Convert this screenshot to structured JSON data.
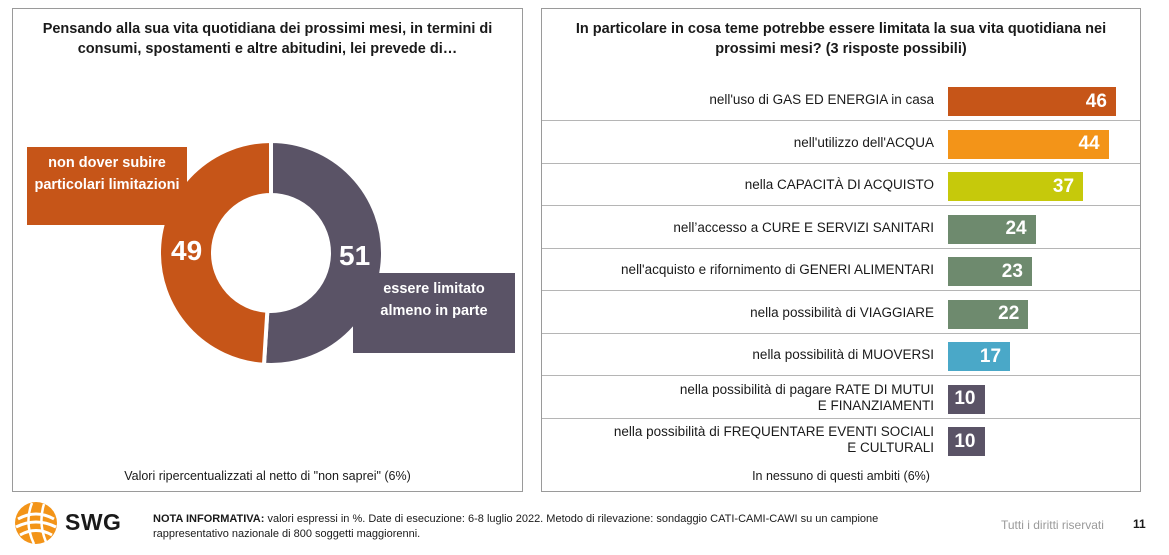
{
  "left_panel": {
    "title": "Pensando alla sua vita quotidiana dei prossimi mesi, in termini di consumi, spostamenti e altre abitudini, lei prevede di…",
    "note": "Valori ripercentualizzati al netto di \"non saprei\" (6%)",
    "callout_no_limit": "non dover subire particolari limitazioni",
    "callout_limited": "essere limitato almeno in parte"
  },
  "right_panel": {
    "title": "In particolare in cosa teme potrebbe essere limitata la sua vita quotidiana nei prossimi mesi? (3 risposte possibili)",
    "note": "In nessuno di questi ambiti (6%)"
  },
  "chart_data": [
    {
      "type": "pie",
      "variant": "donut",
      "labels": [
        "essere limitato almeno in parte",
        "non dover subire particolari limitazioni"
      ],
      "values": [
        51,
        49
      ],
      "colors": [
        "#5a5366",
        "#c65518"
      ]
    },
    {
      "type": "bar",
      "orientation": "horizontal",
      "categories": [
        "nell'uso di GAS ED ENERGIA in casa",
        "nell'utilizzo dell'ACQUA",
        "nella CAPACITÀ DI ACQUISTO",
        "nell’accesso a CURE E SERVIZI SANITARI",
        "nell'acquisto e rifornimento di GENERI ALIMENTARI",
        "nella possibilità di VIAGGIARE",
        "nella possibilità di MUOVERSI",
        "nella possibilità di pagare RATE DI MUTUI E FINANZIAMENTI",
        "nella possibilità di FREQUENTARE EVENTI SOCIALI E CULTURALI"
      ],
      "category_lines": [
        [
          "nell'uso di GAS ED ENERGIA in casa"
        ],
        [
          "nell'utilizzo dell'ACQUA"
        ],
        [
          "nella CAPACITÀ DI ACQUISTO"
        ],
        [
          "nell’accesso a CURE E SERVIZI SANITARI"
        ],
        [
          "nell'acquisto e rifornimento di GENERI ALIMENTARI"
        ],
        [
          "nella possibilità di VIAGGIARE"
        ],
        [
          "nella possibilità di MUOVERSI"
        ],
        [
          "nella possibilità di pagare RATE DI MUTUI",
          "E FINANZIAMENTI"
        ],
        [
          "nella possibilità di FREQUENTARE EVENTI SOCIALI",
          "E CULTURALI"
        ]
      ],
      "values": [
        46,
        44,
        37,
        24,
        23,
        22,
        17,
        10,
        10
      ],
      "colors": [
        "#c65518",
        "#f39418",
        "#c6c90b",
        "#6e8a6e",
        "#6e8a6e",
        "#6e8a6e",
        "#4aa8c8",
        "#5a5366",
        "#5a5366"
      ]
    }
  ],
  "footer": {
    "logo_text": "SWG",
    "note_bold": "NOTA INFORMATIVA:",
    "note_line1": " valori espressi in %. Date di esecuzione: 6-8 luglio 2022. Metodo di rilevazione: sondaggio CATI-CAMI-CAWI su un campione",
    "note_line2": "rappresentativo nazionale di 800 soggetti maggiorenni.",
    "rights": "Tutti i diritti riservati",
    "page_number": "11"
  }
}
